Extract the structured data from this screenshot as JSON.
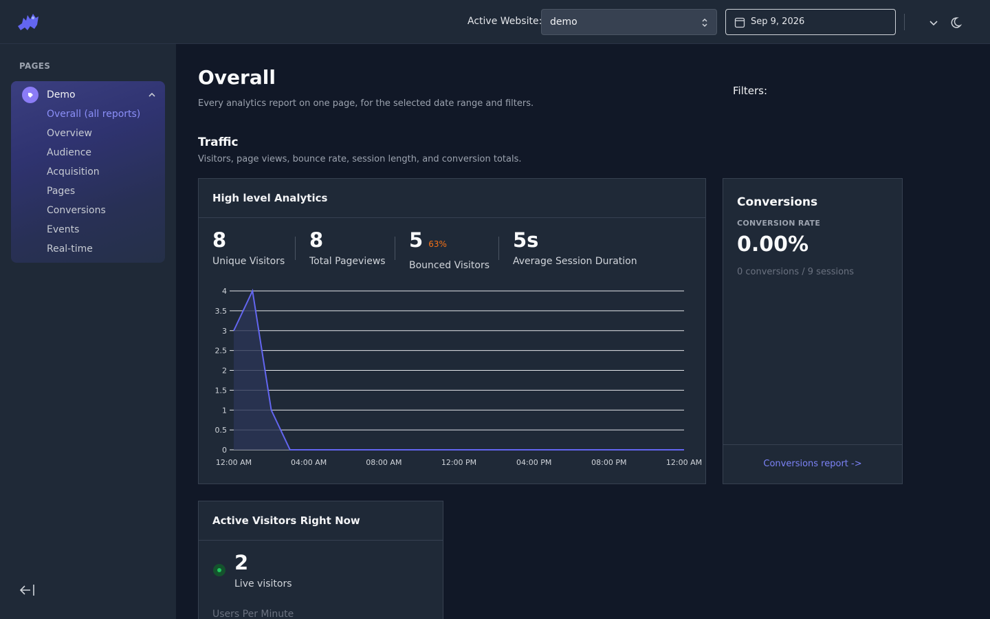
{
  "sidebar": {
    "section_label": "PAGES",
    "site": {
      "name": "Demo",
      "links": [
        {
          "label": "Overall (all reports)",
          "active": true
        },
        {
          "label": "Overview",
          "active": false
        },
        {
          "label": "Audience",
          "active": false
        },
        {
          "label": "Acquisition",
          "active": false
        },
        {
          "label": "Pages",
          "active": false
        },
        {
          "label": "Conversions",
          "active": false
        },
        {
          "label": "Events",
          "active": false
        },
        {
          "label": "Real-time",
          "active": false
        }
      ]
    }
  },
  "topbar": {
    "active_website_label": "Active Website:",
    "active_website_value": "demo",
    "date_value": "Sep 9, 2026"
  },
  "page": {
    "title": "Overall",
    "subtitle": "Every analytics report on one page, for the selected date range and filters.",
    "filters_label": "Filters:"
  },
  "traffic": {
    "title": "Traffic",
    "subtitle": "Visitors, page views, bounce rate, session length, and conversion totals."
  },
  "high_level": {
    "title": "High level Analytics",
    "stats": [
      {
        "value": "8",
        "label": "Unique Visitors",
        "badge": ""
      },
      {
        "value": "8",
        "label": "Total Pageviews",
        "badge": ""
      },
      {
        "value": "5",
        "label": "Bounced Visitors",
        "badge": "63%"
      },
      {
        "value": "5s",
        "label": "Average Session Duration",
        "badge": ""
      }
    ]
  },
  "chart_data": {
    "type": "area",
    "title": "",
    "xlabel": "",
    "ylabel": "",
    "x_ticks": [
      "12:00 AM",
      "04:00 AM",
      "08:00 AM",
      "12:00 PM",
      "04:00 PM",
      "08:00 PM",
      "12:00 AM"
    ],
    "y_ticks": [
      0,
      0.5,
      1,
      1.5,
      2,
      2.5,
      3,
      3.5,
      4
    ],
    "ylim": [
      0,
      4
    ],
    "xlim_hours": [
      0,
      24
    ],
    "grid": true,
    "series": [
      {
        "x_hours": [
          0,
          1,
          2,
          3,
          4,
          5,
          6,
          7,
          8,
          9,
          10,
          11,
          12,
          13,
          14,
          15,
          16,
          17,
          18,
          19,
          20,
          21,
          22,
          23,
          24
        ],
        "values": [
          3,
          4,
          1,
          0,
          0,
          0,
          0,
          0,
          0,
          0,
          0,
          0,
          0,
          0,
          0,
          0,
          0,
          0,
          0,
          0,
          0,
          0,
          0,
          0,
          0
        ]
      }
    ],
    "colors": {
      "line": "#6366f1",
      "fill": "#2b3455",
      "grid": "#e5e7eb",
      "text": "#d1d5db"
    }
  },
  "conversions": {
    "title": "Conversions",
    "rate_label": "CONVERSION RATE",
    "rate": "0.00%",
    "detail": "0 conversions / 9 sessions",
    "link": "Conversions report ->"
  },
  "live": {
    "title": "Active Visitors Right Now",
    "count": "2",
    "label": "Live visitors",
    "upm_label": "Users Per Minute"
  }
}
